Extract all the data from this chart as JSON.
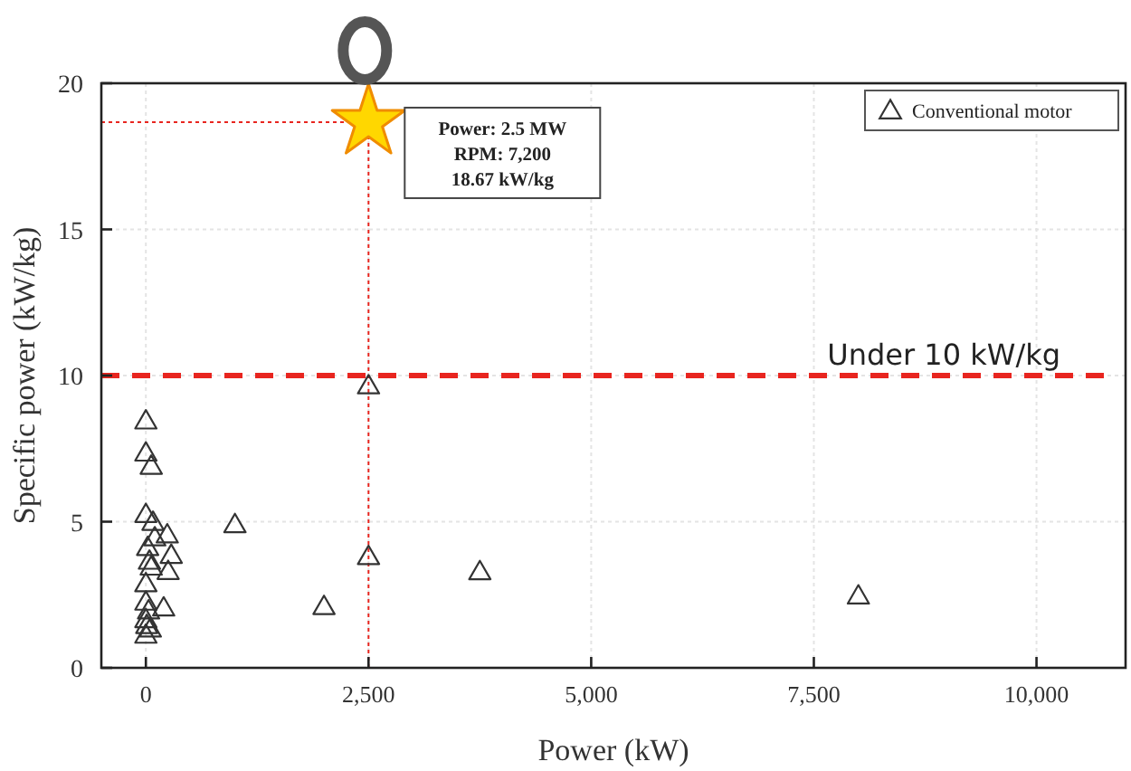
{
  "chart_data": {
    "type": "scatter",
    "xlabel": "Power (kW)",
    "ylabel": "Specific power (kW/kg)",
    "xlim": [
      -500,
      11000
    ],
    "ylim": [
      0,
      20
    ],
    "xticks": [
      {
        "value": 0,
        "label": "0"
      },
      {
        "value": 2500,
        "label": "2,500"
      },
      {
        "value": 5000,
        "label": "5,000"
      },
      {
        "value": 7500,
        "label": "7,500"
      },
      {
        "value": 10000,
        "label": "10,000"
      }
    ],
    "yticks": [
      0,
      5,
      10,
      15,
      20
    ],
    "grid": true,
    "legend": "top right",
    "marker": "triangle",
    "series": [
      {
        "name": "Conventional motor",
        "color": "#333333",
        "x": [
          0,
          0,
          60,
          0,
          80,
          240,
          20,
          285,
          250,
          40,
          0,
          200,
          0,
          0,
          0,
          50,
          100,
          60,
          30,
          10,
          1000,
          2500,
          2500,
          2000,
          3750,
          8000
        ],
        "values": [
          8.4,
          7.3,
          6.85,
          5.2,
          4.93,
          4.5,
          4.07,
          3.8,
          3.25,
          3.6,
          2.83,
          2.0,
          2.2,
          1.6,
          1.07,
          1.28,
          4.4,
          3.4,
          1.9,
          1.4,
          4.85,
          9.6,
          3.76,
          2.05,
          3.24,
          2.41
        ]
      },
      {
        "color": "#ffd700",
        "marker": "star",
        "x": [
          2500
        ],
        "values": [
          18.67
        ]
      }
    ],
    "ref_lines": [
      {
        "axis": "y",
        "value": 10,
        "label": "Under 10 kW/kg",
        "color": "#e8251f",
        "line_style": "dashed"
      },
      {
        "axis": "x",
        "value": 2500,
        "color": "#e8251f",
        "line_style": "dotted"
      },
      {
        "axis": "y",
        "value": 18.67,
        "color": "#e8251f",
        "line_style": "dotted"
      }
    ],
    "annotations": [
      "Power: 2.5 MW\nRPM: 7,200\n18.67 kW/kg"
    ]
  }
}
